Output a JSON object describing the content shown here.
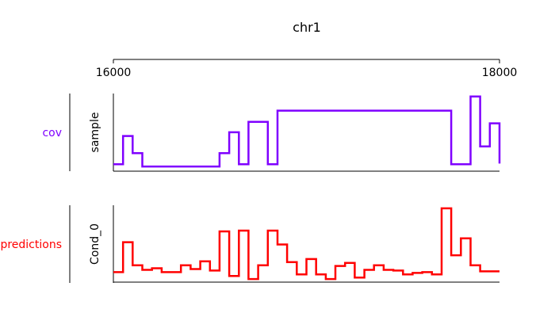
{
  "chart_data": {
    "type": "line",
    "title": "chr1",
    "x_range": [
      16000,
      18000
    ],
    "x_ticks": [
      16000,
      18000
    ],
    "x_tick_labels": [
      "16000",
      "18000"
    ],
    "grid": false,
    "panels": [
      {
        "name": "cov",
        "ylabel": "sample",
        "color": "#7f00ff",
        "step": "post",
        "ylim": [
          0,
          1
        ],
        "x": [
          16000,
          16050,
          16100,
          16150,
          16500,
          16550,
          16600,
          16650,
          16700,
          16800,
          16850,
          17750,
          17800,
          17850,
          17900,
          17950,
          18000
        ],
        "y": [
          0.05,
          0.43,
          0.2,
          0.02,
          0.02,
          0.2,
          0.48,
          0.05,
          0.62,
          0.05,
          0.77,
          0.05,
          0.05,
          0.96,
          0.29,
          0.6,
          0.06
        ]
      },
      {
        "name": "predictions",
        "ylabel": "Cond_0",
        "color": "#ff0000",
        "step": "post",
        "ylim": [
          0,
          1
        ],
        "x": [
          16000,
          16050,
          16100,
          16150,
          16200,
          16250,
          16350,
          16400,
          16450,
          16500,
          16550,
          16600,
          16650,
          16700,
          16750,
          16800,
          16850,
          16900,
          16950,
          17000,
          17050,
          17100,
          17150,
          17200,
          17250,
          17300,
          17350,
          17400,
          17450,
          17500,
          17550,
          17600,
          17650,
          17700,
          17750,
          17800,
          17850,
          17900,
          17950,
          18000
        ],
        "y": [
          0.13,
          0.52,
          0.22,
          0.16,
          0.18,
          0.13,
          0.22,
          0.17,
          0.27,
          0.15,
          0.66,
          0.08,
          0.67,
          0.04,
          0.22,
          0.67,
          0.49,
          0.26,
          0.1,
          0.3,
          0.1,
          0.04,
          0.21,
          0.25,
          0.06,
          0.16,
          0.22,
          0.16,
          0.15,
          0.1,
          0.12,
          0.13,
          0.1,
          0.96,
          0.35,
          0.57,
          0.22,
          0.14,
          0.14,
          0.14
        ]
      }
    ]
  }
}
